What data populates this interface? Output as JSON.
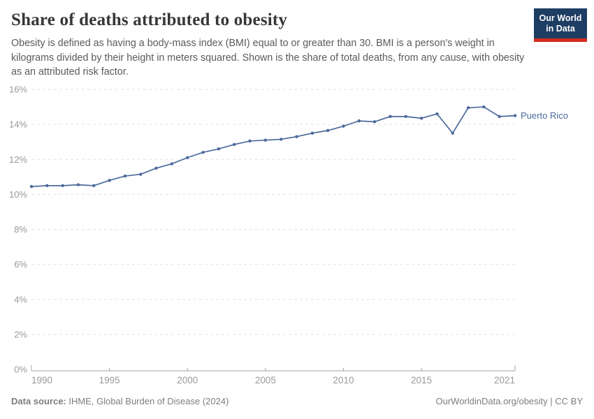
{
  "header": {
    "title": "Share of deaths attributed to obesity",
    "subtitle": "Obesity is defined as having a body-mass index (BMI) equal to or greater than 30. BMI is a person's weight in kilograms divided by their height in meters squared. Shown is the share of total deaths, from any cause, with obesity as an attributed risk factor.",
    "logo": {
      "line1": "Our World",
      "line2": "in Data",
      "bg_color": "#1d3d63",
      "accent_color": "#d42b21"
    }
  },
  "chart_data": {
    "type": "line",
    "title": "Share of deaths attributed to obesity",
    "series": [
      {
        "name": "Puerto Rico",
        "x": [
          1990,
          1991,
          1992,
          1993,
          1994,
          1995,
          1996,
          1997,
          1998,
          1999,
          2000,
          2001,
          2002,
          2003,
          2004,
          2005,
          2006,
          2007,
          2008,
          2009,
          2010,
          2011,
          2012,
          2013,
          2014,
          2015,
          2016,
          2017,
          2018,
          2019,
          2020,
          2021
        ],
        "values": [
          10.45,
          10.5,
          10.5,
          10.55,
          10.5,
          10.8,
          11.05,
          11.15,
          11.5,
          11.75,
          12.1,
          12.4,
          12.6,
          12.85,
          13.05,
          13.1,
          13.15,
          13.3,
          13.5,
          13.65,
          13.9,
          14.2,
          14.15,
          14.45,
          14.45,
          14.35,
          14.6,
          13.5,
          14.95,
          15.0,
          14.45,
          14.5
        ]
      }
    ],
    "xlabel": "",
    "ylabel": "",
    "ylim": [
      0,
      16
    ],
    "yticks": [
      0,
      2,
      4,
      6,
      8,
      10,
      12,
      14,
      16
    ],
    "ytick_suffix": "%",
    "xticks": [
      1990,
      1995,
      2000,
      2005,
      2010,
      2015,
      2021
    ],
    "xlim": [
      1990,
      2021
    ],
    "grid": "dashed horizontal",
    "legend_position": "end-of-line",
    "line_color": "#4c6a9c",
    "label_color": "#4c6a9c",
    "grid_color": "#e3e3e3",
    "axis_color": "#a3a3a3",
    "tick_text_color": "#999999"
  },
  "footer": {
    "source_label": "Data source:",
    "source_text": " IHME, Global Burden of Disease (2024)",
    "right_text": "OurWorldinData.org/obesity | CC BY"
  }
}
